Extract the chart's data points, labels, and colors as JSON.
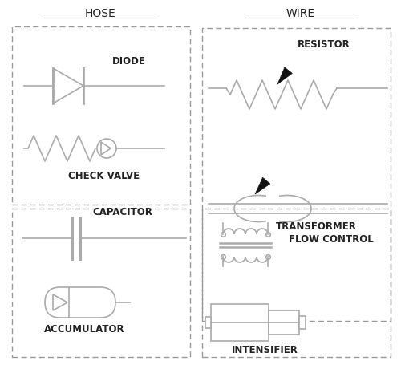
{
  "bg_color": "#ffffff",
  "line_color": "#aaaaaa",
  "text_color": "#222222",
  "arrow_color": "#111111",
  "title_hose": "HOSE",
  "title_wire": "WIRE",
  "label_diode": "DIODE",
  "label_check": "CHECK VALVE",
  "label_resistor": "RESISTOR",
  "label_flow": "FLOW CONTROL",
  "label_capacitor": "CAPACITOR",
  "label_accumulator": "ACCUMULATOR",
  "label_transformer": "TRANSFORMER",
  "label_intensifier": "INTENSIFIER",
  "figsize": [
    5.0,
    4.55
  ],
  "dpi": 100
}
